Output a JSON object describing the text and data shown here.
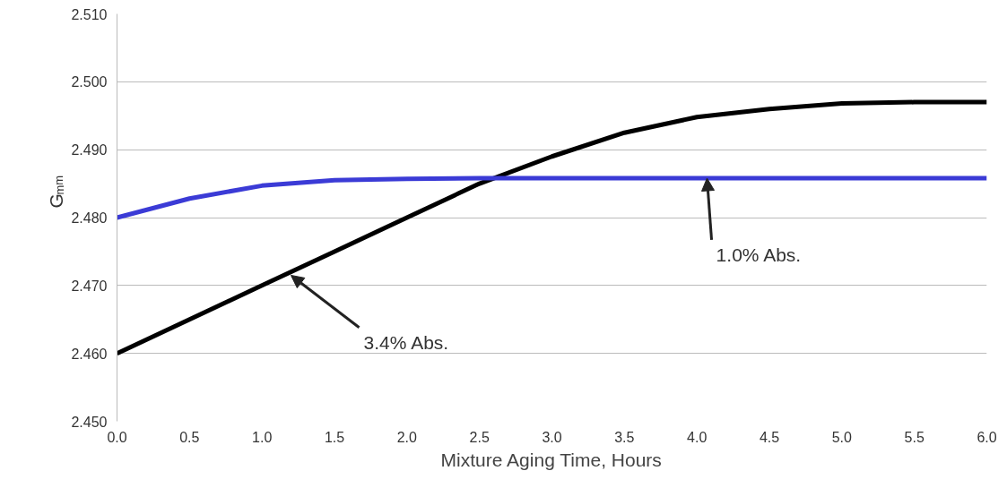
{
  "chart_data": {
    "type": "line",
    "xlabel": "Mixture Aging Time, Hours",
    "ylabel": "G$_{mm}$",
    "x": [
      0,
      0.5,
      1.0,
      1.5,
      2.0,
      2.5,
      3.0,
      3.5,
      4.0,
      4.5,
      5.0,
      5.5,
      6.0
    ],
    "series": [
      {
        "color": "#000000",
        "values": [
          2.46,
          2.465,
          2.47,
          2.475,
          2.48,
          2.485,
          2.489,
          2.4925,
          2.4948,
          2.496,
          2.4968,
          2.497,
          2.497
        ]
      },
      {
        "color": "#3b3bd6",
        "values": [
          2.48,
          2.4828,
          2.4847,
          2.4855,
          2.4857,
          2.4858,
          2.4858,
          2.4858,
          2.4858,
          2.4858,
          2.4858,
          2.4858,
          2.4858
        ]
      }
    ],
    "annotations": [
      {
        "text": "3.4% Abs.",
        "x": 1.2,
        "y": 2.4715
      },
      {
        "text": "1.0% Abs.",
        "x": 4.07,
        "y": 2.4858
      }
    ],
    "xlim": [
      0,
      6
    ],
    "ylim": [
      2.45,
      2.51
    ],
    "xticks": [
      {
        "value": 0,
        "label": "0.0"
      },
      {
        "value": 0.5,
        "label": "0.5"
      },
      {
        "value": 1,
        "label": "1.0"
      },
      {
        "value": 1.5,
        "label": "1.5"
      },
      {
        "value": 2,
        "label": "2.0"
      },
      {
        "value": 2.5,
        "label": "2.5"
      },
      {
        "value": 3,
        "label": "3.0"
      },
      {
        "value": 3.5,
        "label": "3.5"
      },
      {
        "value": 4,
        "label": "4.0"
      },
      {
        "value": 4.5,
        "label": "4.5"
      },
      {
        "value": 5,
        "label": "5.0"
      },
      {
        "value": 5.5,
        "label": "5.5"
      },
      {
        "value": 6,
        "label": "6.0"
      }
    ],
    "yticks": [
      {
        "value": 2.45,
        "label": "2.450"
      },
      {
        "value": 2.46,
        "label": "2.460"
      },
      {
        "value": 2.47,
        "label": "2.470"
      },
      {
        "value": 2.48,
        "label": "2.480"
      },
      {
        "value": 2.49,
        "label": "2.490"
      },
      {
        "value": 2.5,
        "label": "2.500"
      },
      {
        "value": 2.51,
        "label": "2.510"
      }
    ],
    "grid": "y",
    "marker": "none",
    "line_style": "solid"
  }
}
